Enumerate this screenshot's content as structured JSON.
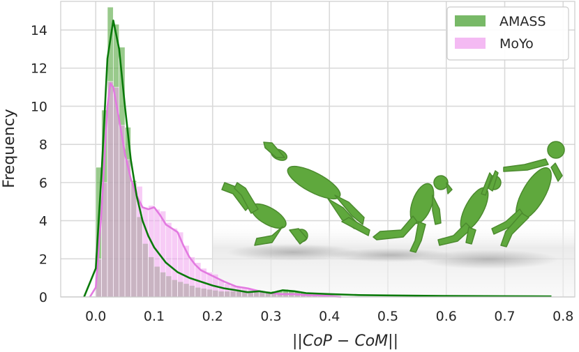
{
  "chart_data": {
    "type": "histogram",
    "xlabel": "||CoP − CoM||",
    "ylabel": "Frequency",
    "xlim": [
      -0.06,
      0.82
    ],
    "ylim": [
      0,
      15.5
    ],
    "xticks": [
      "0.0",
      "0.1",
      "0.2",
      "0.3",
      "0.4",
      "0.5",
      "0.6",
      "0.7",
      "0.8"
    ],
    "yticks": [
      "0",
      "2",
      "4",
      "6",
      "8",
      "10",
      "12",
      "14"
    ],
    "grid": true,
    "legend_position": "top-right",
    "bin_width": 0.01,
    "series": [
      {
        "name": "AMASS",
        "color": "#5aaa46",
        "kde_color": "#0a7a0a",
        "bins": [
          0.0,
          0.01,
          0.02,
          0.03,
          0.04,
          0.05,
          0.06,
          0.07,
          0.08,
          0.09,
          0.1,
          0.11,
          0.12,
          0.13,
          0.14,
          0.15,
          0.16,
          0.17,
          0.18,
          0.19,
          0.2,
          0.21,
          0.22,
          0.23,
          0.24,
          0.25,
          0.26,
          0.27,
          0.28,
          0.29,
          0.3,
          0.31,
          0.32,
          0.33,
          0.34,
          0.35,
          0.36,
          0.37,
          0.38,
          0.39,
          0.4
        ],
        "values": [
          6.8,
          9.8,
          15.2,
          14.3,
          13.1,
          8.9,
          6.1,
          4.2,
          2.8,
          2.1,
          1.6,
          1.3,
          1.1,
          0.9,
          0.8,
          0.7,
          0.6,
          0.5,
          0.45,
          0.4,
          0.35,
          0.3,
          0.3,
          0.3,
          0.3,
          0.3,
          0.3,
          0.3,
          0.3,
          0.3,
          0.3,
          0.35,
          0.4,
          0.35,
          0.3,
          0.25,
          0.2,
          0.15,
          0.1,
          0.1,
          0.08
        ],
        "kde": [
          [
            -0.02,
            0.0
          ],
          [
            0.0,
            1.5
          ],
          [
            0.01,
            6.5
          ],
          [
            0.02,
            12.5
          ],
          [
            0.03,
            14.5
          ],
          [
            0.04,
            13.0
          ],
          [
            0.05,
            10.0
          ],
          [
            0.06,
            7.2
          ],
          [
            0.07,
            5.3
          ],
          [
            0.08,
            4.0
          ],
          [
            0.09,
            3.2
          ],
          [
            0.1,
            2.6
          ],
          [
            0.12,
            1.8
          ],
          [
            0.14,
            1.3
          ],
          [
            0.16,
            1.0
          ],
          [
            0.18,
            0.8
          ],
          [
            0.2,
            0.6
          ],
          [
            0.22,
            0.45
          ],
          [
            0.24,
            0.35
          ],
          [
            0.26,
            0.25
          ],
          [
            0.28,
            0.3
          ],
          [
            0.3,
            0.2
          ],
          [
            0.32,
            0.35
          ],
          [
            0.34,
            0.3
          ],
          [
            0.36,
            0.2
          ],
          [
            0.4,
            0.15
          ],
          [
            0.45,
            0.1
          ],
          [
            0.5,
            0.08
          ],
          [
            0.6,
            0.05
          ],
          [
            0.7,
            0.04
          ],
          [
            0.78,
            0.03
          ]
        ]
      },
      {
        "name": "MoYo",
        "color": "#f0a3ef",
        "kde_color": "#e27ae0",
        "bins": [
          0.0,
          0.01,
          0.02,
          0.03,
          0.04,
          0.05,
          0.06,
          0.07,
          0.08,
          0.09,
          0.1,
          0.11,
          0.12,
          0.13,
          0.14,
          0.15,
          0.16,
          0.17,
          0.18,
          0.19,
          0.2,
          0.21,
          0.22,
          0.23,
          0.24,
          0.25,
          0.26,
          0.27,
          0.28,
          0.29,
          0.3,
          0.31,
          0.32,
          0.33,
          0.34,
          0.35,
          0.36,
          0.37,
          0.38,
          0.39,
          0.4
        ],
        "values": [
          2.0,
          6.0,
          11.3,
          11.0,
          9.0,
          7.2,
          6.0,
          5.8,
          4.7,
          4.8,
          4.6,
          4.5,
          3.9,
          3.6,
          3.4,
          2.7,
          2.1,
          1.8,
          1.5,
          1.3,
          1.2,
          0.9,
          0.7,
          0.6,
          0.55,
          0.5,
          0.45,
          0.35,
          0.3,
          0.25,
          0.2,
          0.2,
          0.15,
          0.15,
          0.15,
          0.1,
          0.1,
          0.1,
          0.08,
          0.06,
          0.05
        ],
        "kde": [
          [
            -0.01,
            0.0
          ],
          [
            0.0,
            0.5
          ],
          [
            0.01,
            4.5
          ],
          [
            0.02,
            10.0
          ],
          [
            0.025,
            11.2
          ],
          [
            0.03,
            11.0
          ],
          [
            0.04,
            9.3
          ],
          [
            0.05,
            7.5
          ],
          [
            0.06,
            6.2
          ],
          [
            0.07,
            5.3
          ],
          [
            0.08,
            4.7
          ],
          [
            0.09,
            4.6
          ],
          [
            0.1,
            4.7
          ],
          [
            0.11,
            4.3
          ],
          [
            0.12,
            3.8
          ],
          [
            0.13,
            3.6
          ],
          [
            0.14,
            3.4
          ],
          [
            0.15,
            2.7
          ],
          [
            0.16,
            2.1
          ],
          [
            0.17,
            1.7
          ],
          [
            0.18,
            1.4
          ],
          [
            0.2,
            1.1
          ],
          [
            0.22,
            0.8
          ],
          [
            0.24,
            0.55
          ],
          [
            0.26,
            0.45
          ],
          [
            0.28,
            0.3
          ],
          [
            0.3,
            0.2
          ],
          [
            0.32,
            0.15
          ],
          [
            0.34,
            0.15
          ],
          [
            0.36,
            0.1
          ],
          [
            0.38,
            0.08
          ],
          [
            0.4,
            0.05
          ],
          [
            0.42,
            0.0
          ]
        ]
      }
    ]
  }
}
